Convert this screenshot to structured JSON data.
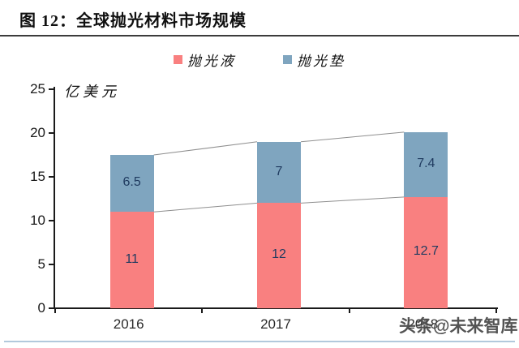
{
  "figure": {
    "title": "图 12：全球抛光材料市场规模"
  },
  "chart_data": {
    "type": "bar",
    "stacked": true,
    "title": "全球抛光材料市场规模",
    "unit_label": "亿美元",
    "categories": [
      "2016",
      "2017",
      "2018"
    ],
    "series": [
      {
        "name": "抛光液",
        "color": "#F98080",
        "values": [
          11,
          12,
          12.7
        ]
      },
      {
        "name": "抛光垫",
        "color": "#7FA5BF",
        "values": [
          6.5,
          7,
          7.4
        ]
      }
    ],
    "totals": [
      17.5,
      19,
      20.1
    ],
    "ylim": [
      0,
      25
    ],
    "yticks": [
      0,
      5,
      10,
      15,
      20,
      25
    ],
    "grid": false,
    "legend_position": "top",
    "series_lines": true,
    "series_line_color": "#8f8f8f",
    "value_label_color": "#1f3a5f"
  },
  "watermark": {
    "text": "头条@未来智库"
  }
}
